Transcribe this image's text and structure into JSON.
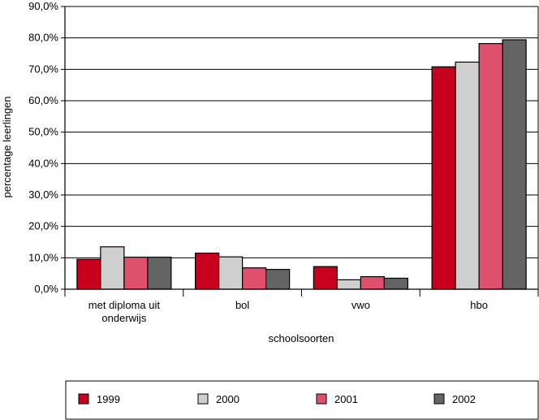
{
  "chart_data": {
    "type": "bar",
    "title": "",
    "xlabel": "schoolsoorten",
    "ylabel": "percentage leerlingen",
    "ylim": [
      0,
      90
    ],
    "yticks": [
      "0,0%",
      "10,0%",
      "20,0%",
      "30,0%",
      "40,0%",
      "50,0%",
      "60,0%",
      "70,0%",
      "80,0%",
      "90,0%"
    ],
    "grid": true,
    "legend_position": "bottom",
    "categories": [
      [
        "met diploma uit",
        "onderwijs"
      ],
      [
        "bol"
      ],
      [
        "vwo"
      ],
      [
        "hbo"
      ]
    ],
    "series": [
      {
        "name": "1999",
        "color": "#c8001e",
        "values": [
          9.5,
          11.5,
          7.2,
          70.8
        ]
      },
      {
        "name": "2000",
        "color": "#cfcfcf",
        "values": [
          13.5,
          10.3,
          3.0,
          72.3
        ]
      },
      {
        "name": "2001",
        "color": "#df506c",
        "values": [
          10.2,
          6.8,
          4.0,
          78.2
        ]
      },
      {
        "name": "2002",
        "color": "#646464",
        "values": [
          10.2,
          6.3,
          3.5,
          79.4
        ]
      }
    ]
  }
}
